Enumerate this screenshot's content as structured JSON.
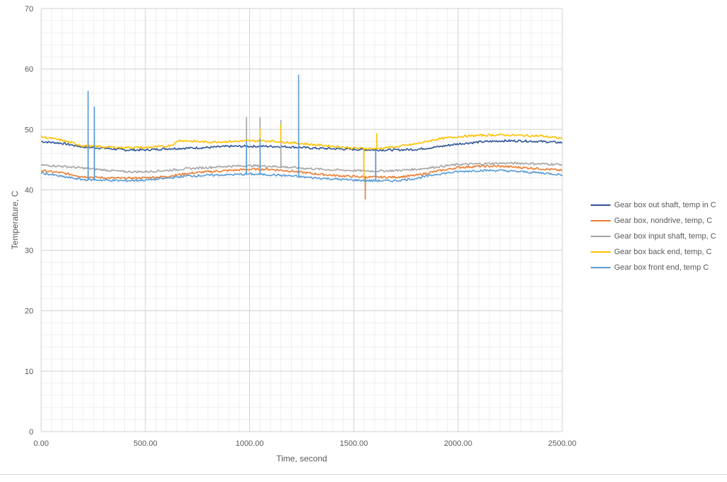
{
  "chart_data": {
    "type": "line",
    "title": "",
    "xlabel": "Time, second",
    "ylabel": "Temperature, C",
    "xlim": [
      0,
      2500
    ],
    "ylim": [
      0,
      70
    ],
    "x_ticks": [
      "0.00",
      "500.00",
      "1000.00",
      "1500.00",
      "2000.00",
      "2500.00"
    ],
    "x_tick_values": [
      0,
      500,
      1000,
      1500,
      2000,
      2500
    ],
    "y_ticks": [
      "0",
      "10",
      "20",
      "30",
      "40",
      "50",
      "60",
      "70"
    ],
    "y_tick_values": [
      0,
      10,
      20,
      30,
      40,
      50,
      60,
      70
    ],
    "grid": true,
    "legend_position": "right",
    "series": [
      {
        "name": "Gear box out shaft, temp in C",
        "color": "#2f5597",
        "x": [
          0,
          100,
          200,
          300,
          400,
          500,
          600,
          700,
          800,
          900,
          1000,
          1100,
          1200,
          1300,
          1400,
          1500,
          1600,
          1700,
          1800,
          1900,
          2000,
          2100,
          2200,
          2300,
          2400,
          2500
        ],
        "y": [
          48.0,
          47.7,
          47.1,
          46.9,
          46.6,
          46.6,
          46.8,
          46.9,
          47.0,
          47.2,
          47.2,
          47.2,
          47.1,
          46.9,
          46.8,
          46.7,
          46.6,
          46.6,
          46.7,
          47.1,
          47.6,
          47.9,
          48.1,
          48.1,
          48.0,
          47.8
        ],
        "spikes": []
      },
      {
        "name": "Gear box, nondrive, temp, C",
        "color": "#ed7d31",
        "x": [
          0,
          100,
          200,
          300,
          400,
          500,
          600,
          700,
          800,
          900,
          1000,
          1100,
          1200,
          1300,
          1400,
          1500,
          1600,
          1700,
          1800,
          1900,
          2000,
          2100,
          2200,
          2300,
          2400,
          2500
        ],
        "y": [
          43.2,
          42.8,
          42.2,
          42.0,
          41.9,
          42.0,
          42.2,
          42.7,
          43.0,
          43.2,
          43.4,
          43.4,
          43.1,
          42.7,
          42.4,
          42.2,
          42.1,
          42.1,
          42.4,
          43.1,
          43.7,
          43.9,
          43.9,
          43.7,
          43.5,
          43.2
        ],
        "spikes": [
          [
            1555,
            38.5
          ]
        ]
      },
      {
        "name": "Gear box input shaft, temp, C",
        "color": "#a5a5a5",
        "x": [
          0,
          100,
          200,
          300,
          400,
          500,
          600,
          700,
          800,
          900,
          1000,
          1100,
          1200,
          1300,
          1400,
          1500,
          1600,
          1700,
          1800,
          1900,
          2000,
          2100,
          2200,
          2300,
          2400,
          2500
        ],
        "y": [
          44.1,
          43.9,
          43.6,
          43.3,
          43.0,
          43.0,
          43.2,
          43.5,
          43.7,
          43.9,
          44.0,
          43.9,
          43.7,
          43.5,
          43.3,
          43.2,
          43.1,
          43.2,
          43.4,
          43.8,
          44.2,
          44.3,
          44.4,
          44.4,
          44.3,
          44.2
        ],
        "spikes": [
          [
            985,
            52.0
          ],
          [
            1050,
            52.0
          ],
          [
            1150,
            51.5
          ]
        ]
      },
      {
        "name": "Gear box back end, temp, C",
        "color": "#ffc000",
        "x": [
          0,
          100,
          200,
          300,
          400,
          500,
          600,
          640,
          660,
          700,
          800,
          900,
          1000,
          1100,
          1200,
          1300,
          1400,
          1500,
          1600,
          1700,
          1800,
          1900,
          2000,
          2100,
          2200,
          2300,
          2400,
          2500
        ],
        "y": [
          48.8,
          48.2,
          47.3,
          47.1,
          47.0,
          47.0,
          47.2,
          47.6,
          48.2,
          48.1,
          47.9,
          48.0,
          48.1,
          48.1,
          47.8,
          47.5,
          47.2,
          46.9,
          46.8,
          47.1,
          47.6,
          48.4,
          48.8,
          49.0,
          49.1,
          49.0,
          48.9,
          48.5
        ],
        "spikes": [
          [
            1050,
            50.0
          ],
          [
            1150,
            50.8
          ],
          [
            1548,
            41.5
          ],
          [
            1610,
            49.3
          ]
        ]
      },
      {
        "name": "Gear box front end, temp C",
        "color": "#5b9bd5",
        "x": [
          0,
          100,
          200,
          300,
          400,
          500,
          600,
          700,
          800,
          900,
          1000,
          1100,
          1200,
          1300,
          1400,
          1500,
          1600,
          1700,
          1800,
          1900,
          2000,
          2100,
          2200,
          2300,
          2400,
          2500
        ],
        "y": [
          42.8,
          42.2,
          41.7,
          41.6,
          41.5,
          41.6,
          41.9,
          42.3,
          42.4,
          42.5,
          42.6,
          42.5,
          42.3,
          42.0,
          41.8,
          41.6,
          41.5,
          41.5,
          41.9,
          42.6,
          43.0,
          43.2,
          43.2,
          43.0,
          42.8,
          42.5
        ],
        "spikes": [
          [
            225,
            56.3
          ],
          [
            255,
            53.7
          ],
          [
            985,
            48.0
          ],
          [
            1050,
            48.5
          ],
          [
            1235,
            59.0
          ],
          [
            1605,
            46.5
          ]
        ]
      }
    ]
  }
}
